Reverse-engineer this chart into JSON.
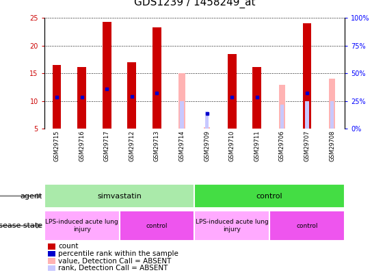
{
  "title": "GDS1239 / 1458249_at",
  "samples": [
    "GSM29715",
    "GSM29716",
    "GSM29717",
    "GSM29712",
    "GSM29713",
    "GSM29714",
    "GSM29709",
    "GSM29710",
    "GSM29711",
    "GSM29706",
    "GSM29707",
    "GSM29708"
  ],
  "count_values": [
    16.5,
    16.2,
    24.3,
    17.0,
    23.3,
    null,
    null,
    18.5,
    16.2,
    null,
    24.0,
    null
  ],
  "percentile_values": [
    10.7,
    10.7,
    12.2,
    10.8,
    11.5,
    null,
    7.7,
    10.7,
    10.7,
    null,
    11.5,
    null
  ],
  "absent_value_values": [
    null,
    null,
    null,
    null,
    null,
    15.0,
    5.3,
    null,
    null,
    13.0,
    null,
    14.0
  ],
  "absent_rank_values": [
    null,
    null,
    null,
    null,
    null,
    10.0,
    8.1,
    null,
    null,
    9.3,
    10.0,
    10.0
  ],
  "ylim": [
    5,
    25
  ],
  "yticks": [
    5,
    10,
    15,
    20,
    25
  ],
  "y2ticks_pct": [
    0,
    25,
    50,
    75,
    100
  ],
  "y2labels": [
    "0%",
    "25%",
    "50%",
    "75%",
    "100%"
  ],
  "agent_groups": [
    {
      "label": "simvastatin",
      "start": 0,
      "end": 6,
      "color": "#AAEAAA"
    },
    {
      "label": "control",
      "start": 6,
      "end": 12,
      "color": "#44DD44"
    }
  ],
  "disease_groups": [
    {
      "label": "LPS-induced acute lung\ninjury",
      "start": 0,
      "end": 3,
      "color": "#FFAAFF"
    },
    {
      "label": "control",
      "start": 3,
      "end": 6,
      "color": "#EE55EE"
    },
    {
      "label": "LPS-induced acute lung\ninjury",
      "start": 6,
      "end": 9,
      "color": "#FFAAFF"
    },
    {
      "label": "control",
      "start": 9,
      "end": 12,
      "color": "#EE55EE"
    }
  ],
  "count_color": "#CC0000",
  "percentile_color": "#0000CC",
  "absent_value_color": "#FFB3B3",
  "absent_rank_color": "#C8C8FF",
  "bar_width": 0.35,
  "dot_size": 18,
  "title_fontsize": 11,
  "tick_fontsize": 7,
  "label_fontsize": 8,
  "xticklabel_bg": "#C8C8C8"
}
